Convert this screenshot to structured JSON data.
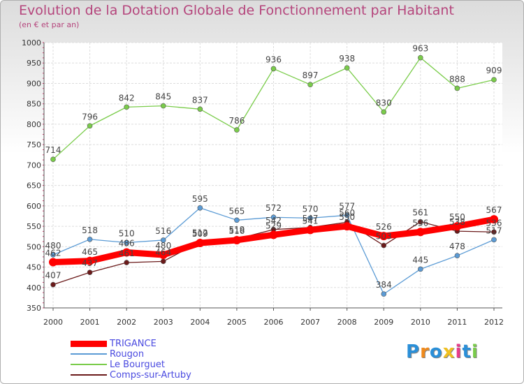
{
  "title": "Evolution de la Dotation Globale de Fonctionnement par Habitant",
  "subtitle": "(en € et par an)",
  "chart_data": {
    "type": "line",
    "x": [
      "2000",
      "2001",
      "2002",
      "2003",
      "2004",
      "2005",
      "2006",
      "2007",
      "2008",
      "2009",
      "2010",
      "2011",
      "2012"
    ],
    "ylim": [
      350,
      1000
    ],
    "yticks": [
      350,
      400,
      450,
      500,
      550,
      600,
      650,
      700,
      750,
      800,
      850,
      900,
      950,
      1000
    ],
    "grid": true,
    "legend_position": "bottom-left",
    "series": [
      {
        "name": "TRIGANCE",
        "color": "#ff0000",
        "values": [
          462,
          465,
          486,
          480,
          509,
          516,
          529,
          541,
          550,
          526,
          536,
          550,
          567
        ]
      },
      {
        "name": "Rougon",
        "color": "#5b9bd5",
        "values": [
          480,
          518,
          510,
          516,
          595,
          565,
          572,
          570,
          577,
          384,
          445,
          478,
          517
        ]
      },
      {
        "name": "Le Bourguet",
        "color": "#7acc4a",
        "values": [
          714,
          796,
          842,
          845,
          837,
          786,
          936,
          897,
          938,
          830,
          963,
          888,
          909
        ]
      },
      {
        "name": "Comps-sur-Artuby",
        "color": "#6b1a1a",
        "values": [
          407,
          437,
          461,
          464,
          512,
          519,
          542,
          547,
          560,
          503,
          561,
          538,
          536
        ]
      }
    ],
    "data_labels": [
      [
        "462",
        "465",
        "486",
        "480",
        "509",
        "516",
        "529",
        "541",
        "550",
        "526",
        "536",
        "550",
        "567"
      ],
      [
        "480",
        "518",
        "510",
        "516",
        "595",
        "565",
        "572",
        "570",
        "577",
        "384",
        "445",
        "478",
        "517"
      ],
      [
        "714",
        "796",
        "842",
        "845",
        "837",
        "786",
        "936",
        "897",
        "938",
        "830",
        "963",
        "888",
        "909"
      ],
      [
        "407",
        "437",
        "461",
        "464",
        "512",
        "519",
        "542",
        "547",
        "560",
        "503",
        "561",
        "538",
        "536"
      ]
    ]
  },
  "logo": {
    "letters": [
      "P",
      "r",
      "o",
      "x",
      "i",
      "t",
      "i"
    ],
    "colors": [
      "#2a8fd8",
      "#f08a1c",
      "#2a8fd8",
      "#f0c020",
      "#e83b8a",
      "#2a8fd8",
      "#7acc4a"
    ]
  }
}
